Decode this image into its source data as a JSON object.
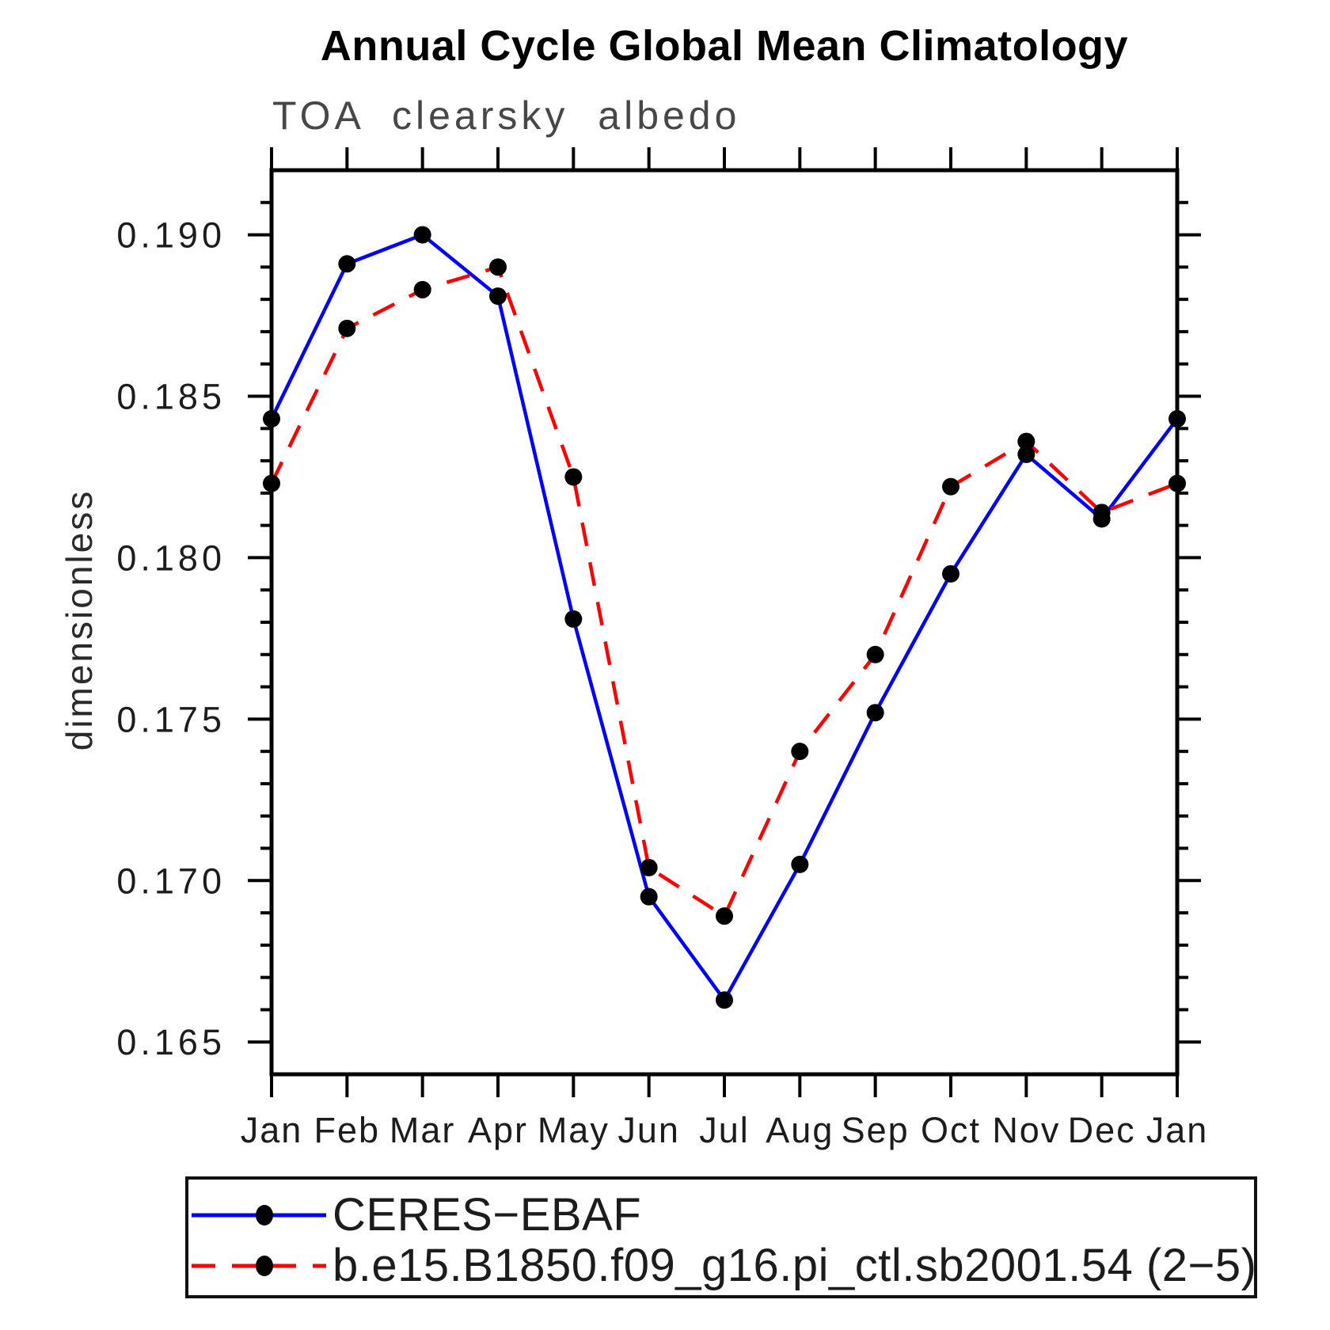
{
  "title": "Annual Cycle Global Mean Climatology",
  "subtitle": "TOA clearsky albedo",
  "y_axis_label": "dimensionless",
  "colors": {
    "ceres_line": "#0000ff",
    "model_line": "#ff0000",
    "marker": "#000000",
    "axis": "#000000",
    "tick_label": "#1c1c1c",
    "subtitle_text": "#474747"
  },
  "chart_data": {
    "type": "line",
    "title": "Annual Cycle Global Mean Climatology",
    "subtitle": "TOA clearsky albedo",
    "xlabel": "",
    "ylabel": "dimensionless",
    "x_categories": [
      "Jan",
      "Feb",
      "Mar",
      "Apr",
      "May",
      "Jun",
      "Jul",
      "Aug",
      "Sep",
      "Oct",
      "Nov",
      "Dec",
      "Jan"
    ],
    "ylim": [
      0.164,
      0.192
    ],
    "y_major_ticks": [
      0.165,
      0.17,
      0.175,
      0.18,
      0.185,
      0.19
    ],
    "y_minor_step": 0.001,
    "y_tick_decimals": 3,
    "grid": false,
    "legend_position": "below-left-box",
    "series": [
      {
        "name": "CERES−EBAF",
        "line_style": "solid",
        "color": "#0000ff",
        "marker": "circle",
        "marker_color": "#000000",
        "values": [
          0.1843,
          0.1891,
          0.19,
          0.1881,
          0.1781,
          0.1695,
          0.1663,
          0.1705,
          0.1752,
          0.1795,
          0.1832,
          0.1812,
          0.1843
        ]
      },
      {
        "name": "b.e15.B1850.f09_g16.pi_ctl.sb2001.54 (2−5)",
        "line_style": "dashed",
        "color": "#ff0000",
        "marker": "circle",
        "marker_color": "#000000",
        "values": [
          0.1823,
          0.1871,
          0.1883,
          0.189,
          0.1825,
          0.1704,
          0.1689,
          0.174,
          0.177,
          0.1822,
          0.1836,
          0.1814,
          0.1823
        ]
      }
    ]
  }
}
